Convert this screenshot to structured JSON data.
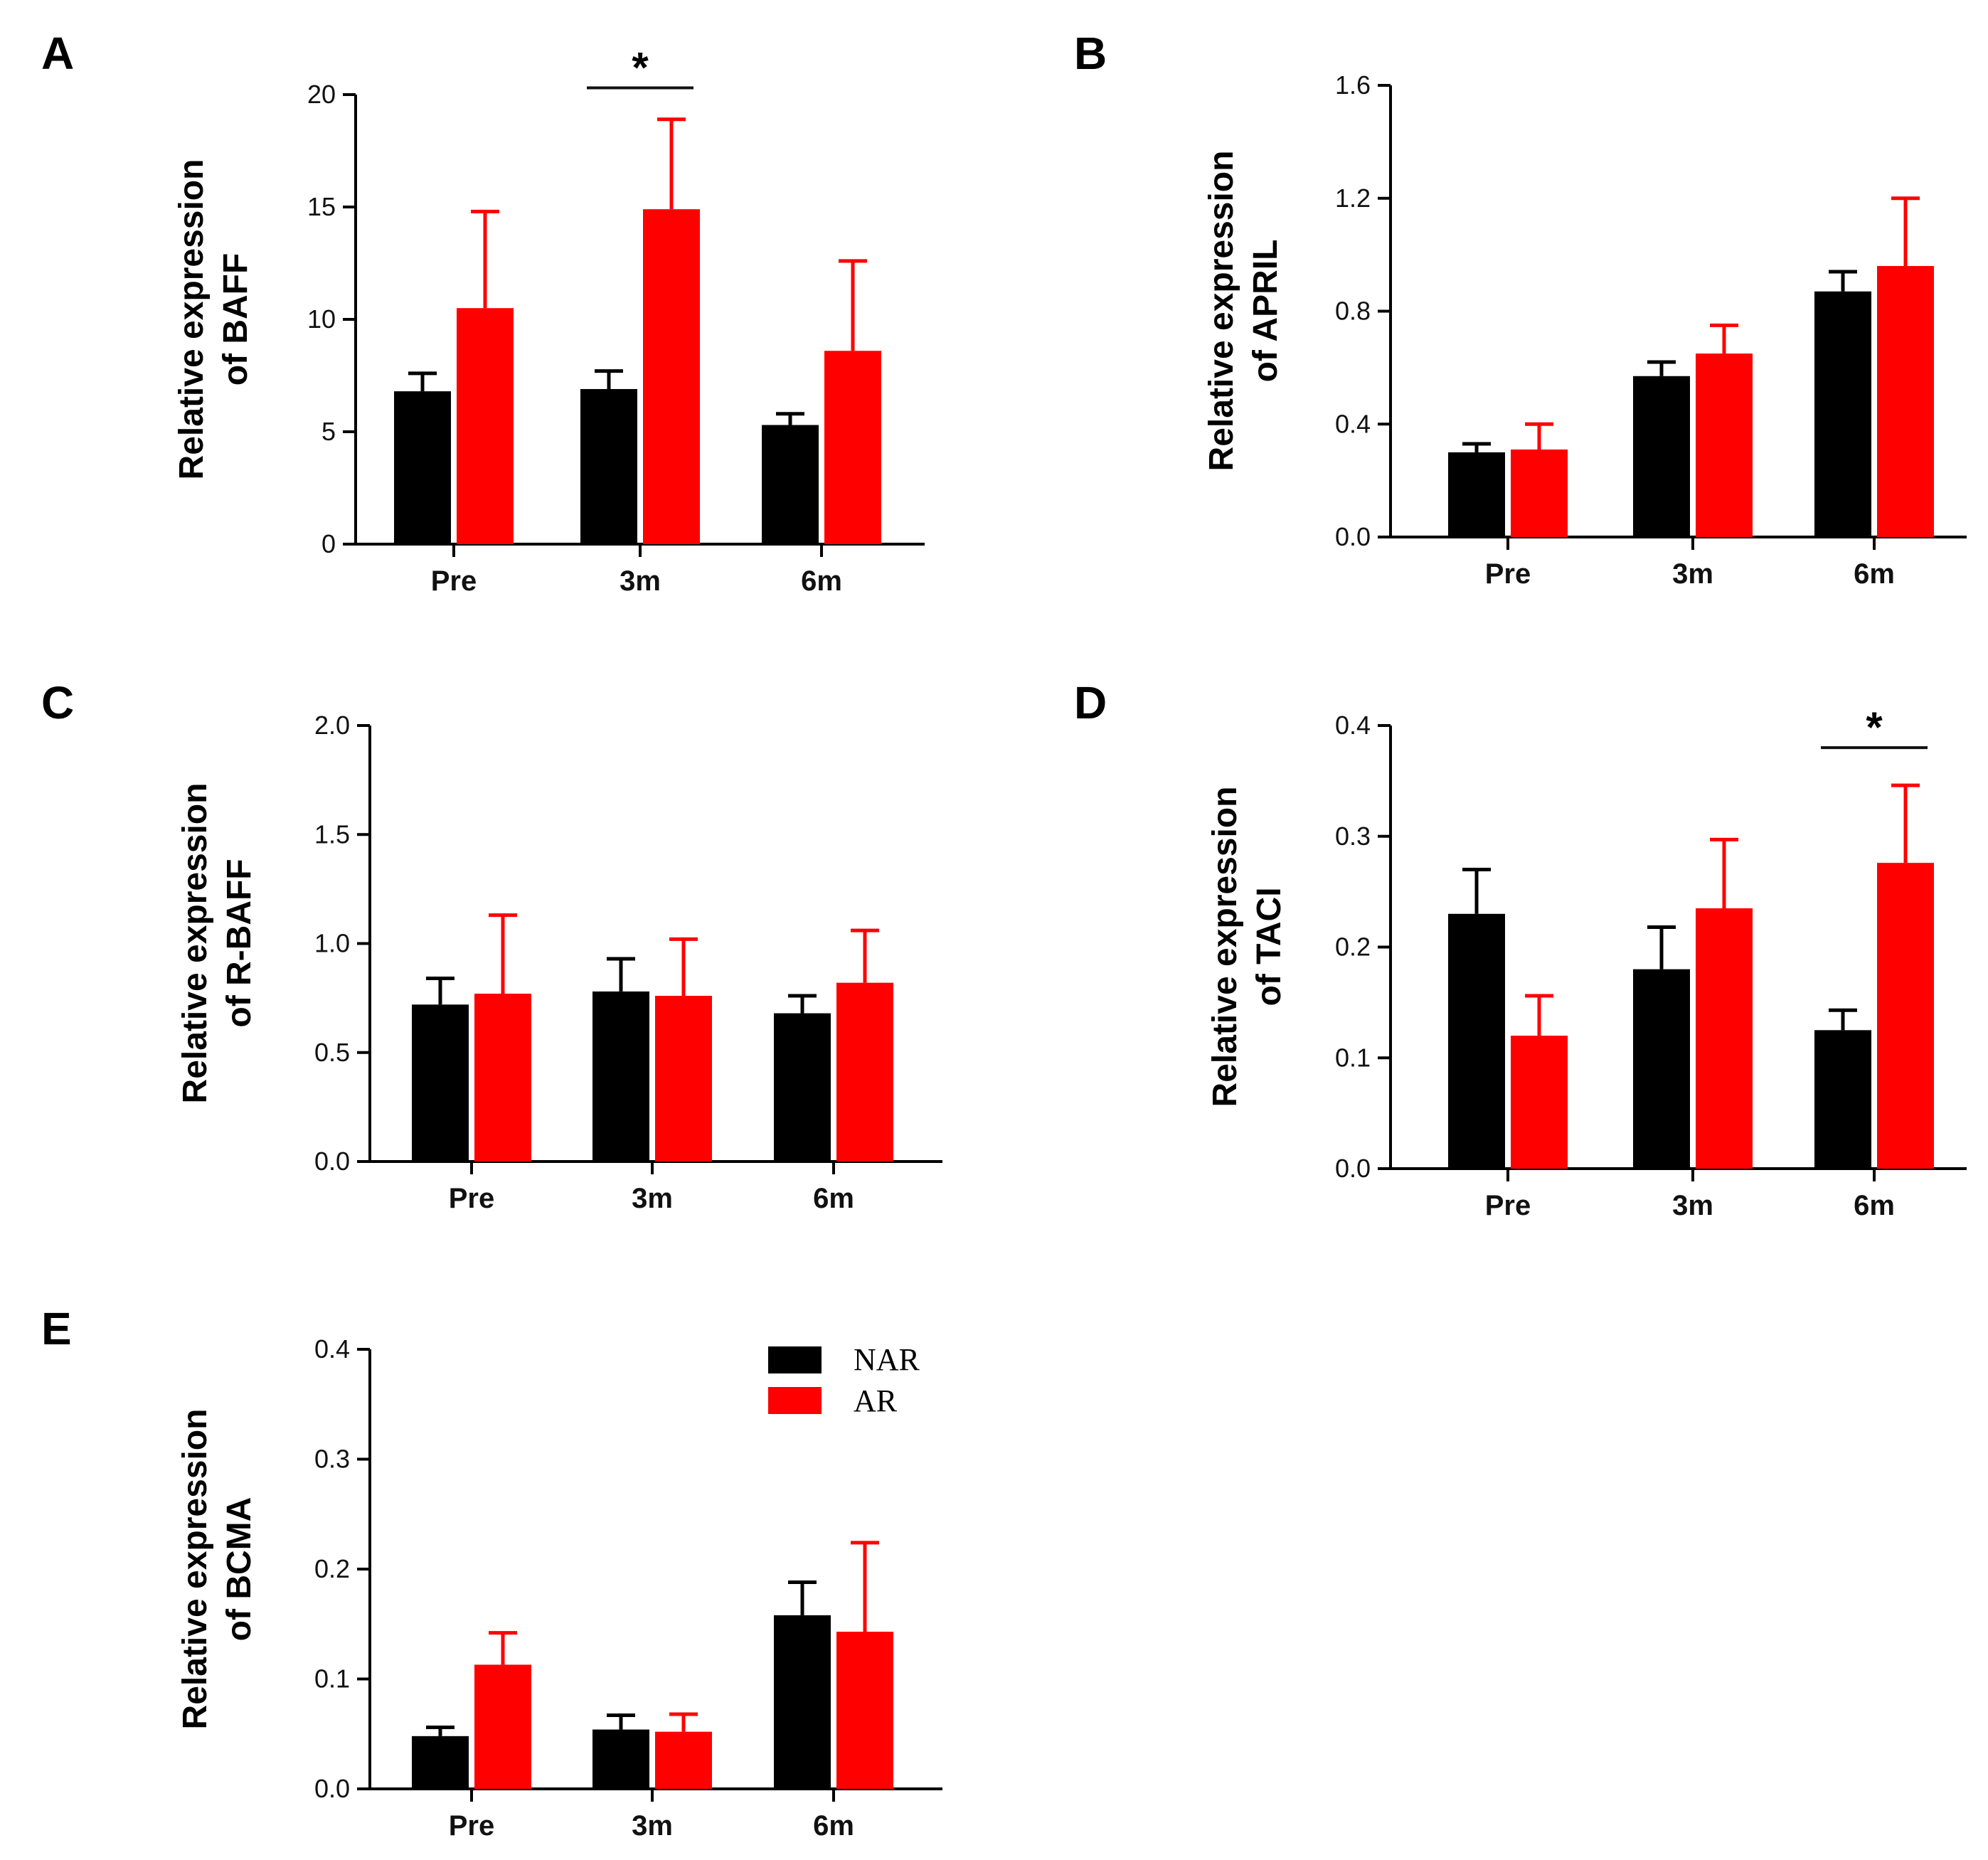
{
  "legend": {
    "entries": [
      {
        "name": "NAR",
        "color": "#000000"
      },
      {
        "name": "AR",
        "color": "#ff0000"
      }
    ]
  },
  "chart_data": [
    {
      "panel": "A",
      "type": "bar",
      "ylabel": [
        "Relative expression",
        "of BAFF"
      ],
      "categories": [
        "Pre",
        "3m",
        "6m"
      ],
      "ylim": [
        0,
        20
      ],
      "yticks": [
        0,
        5,
        10,
        15,
        20
      ],
      "series": [
        {
          "name": "NAR",
          "color": "#000000",
          "values": [
            6.8,
            6.9,
            5.3
          ],
          "errors": [
            0.8,
            0.8,
            0.5
          ]
        },
        {
          "name": "AR",
          "color": "#ff0000",
          "values": [
            10.5,
            14.9,
            8.6
          ],
          "errors": [
            4.3,
            4.0,
            4.0
          ]
        }
      ],
      "significance": [
        {
          "category": "3m",
          "label": "*",
          "y": 20.3
        }
      ]
    },
    {
      "panel": "B",
      "type": "bar",
      "ylabel": [
        "Relative expression",
        "of APRIL"
      ],
      "categories": [
        "Pre",
        "3m",
        "6m"
      ],
      "ylim": [
        0,
        1.6
      ],
      "yticks": [
        "0.0",
        "0.4",
        "0.8",
        "1.2",
        "1.6"
      ],
      "series": [
        {
          "name": "NAR",
          "color": "#000000",
          "values": [
            0.3,
            0.57,
            0.87
          ],
          "errors": [
            0.03,
            0.05,
            0.07
          ]
        },
        {
          "name": "AR",
          "color": "#ff0000",
          "values": [
            0.31,
            0.65,
            0.96
          ],
          "errors": [
            0.09,
            0.1,
            0.24
          ]
        }
      ],
      "significance": []
    },
    {
      "panel": "C",
      "type": "bar",
      "ylabel": [
        "Relative expression",
        "of R-BAFF"
      ],
      "categories": [
        "Pre",
        "3m",
        "6m"
      ],
      "ylim": [
        0,
        2.0
      ],
      "yticks": [
        "0.0",
        "0.5",
        "1.0",
        "1.5",
        "2.0"
      ],
      "series": [
        {
          "name": "NAR",
          "color": "#000000",
          "values": [
            0.72,
            0.78,
            0.68
          ],
          "errors": [
            0.12,
            0.15,
            0.08
          ]
        },
        {
          "name": "AR",
          "color": "#ff0000",
          "values": [
            0.77,
            0.76,
            0.82
          ],
          "errors": [
            0.36,
            0.26,
            0.24
          ]
        }
      ],
      "significance": []
    },
    {
      "panel": "D",
      "type": "bar",
      "ylabel": [
        "Relative expression",
        "of TACI"
      ],
      "categories": [
        "Pre",
        "3m",
        "6m"
      ],
      "ylim": [
        0,
        0.4
      ],
      "yticks": [
        "0.0",
        "0.1",
        "0.2",
        "0.3",
        "0.4"
      ],
      "series": [
        {
          "name": "NAR",
          "color": "#000000",
          "values": [
            0.23,
            0.18,
            0.125
          ],
          "errors": [
            0.04,
            0.038,
            0.018
          ]
        },
        {
          "name": "AR",
          "color": "#ff0000",
          "values": [
            0.12,
            0.235,
            0.276
          ],
          "errors": [
            0.036,
            0.062,
            0.07
          ]
        }
      ],
      "significance": [
        {
          "category": "6m",
          "label": "*",
          "y": 0.38
        }
      ]
    },
    {
      "panel": "E",
      "type": "bar",
      "ylabel": [
        "Relative expression",
        "of BCMA"
      ],
      "categories": [
        "Pre",
        "3m",
        "6m"
      ],
      "ylim": [
        0,
        0.4
      ],
      "yticks": [
        "0.0",
        "0.1",
        "0.2",
        "0.3",
        "0.4"
      ],
      "series": [
        {
          "name": "NAR",
          "color": "#000000",
          "values": [
            0.048,
            0.054,
            0.158
          ],
          "errors": [
            0.008,
            0.013,
            0.03
          ]
        },
        {
          "name": "AR",
          "color": "#ff0000",
          "values": [
            0.113,
            0.052,
            0.143
          ],
          "errors": [
            0.029,
            0.016,
            0.081
          ]
        }
      ],
      "significance": []
    }
  ]
}
